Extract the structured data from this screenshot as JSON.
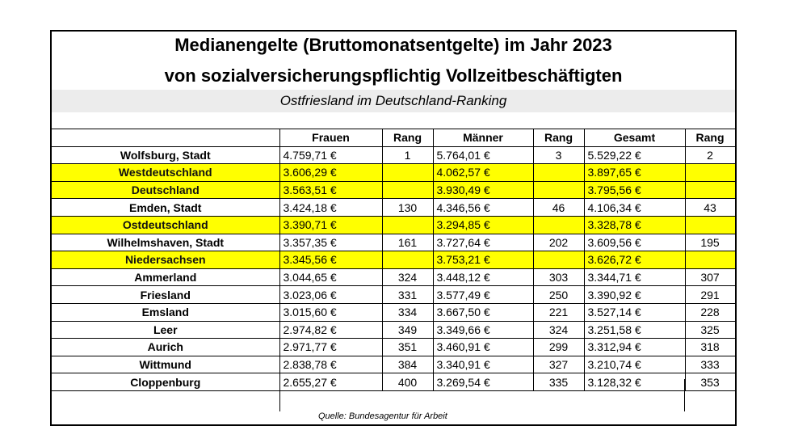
{
  "title_line1": "Medianengelte (Bruttomonatsentgelte) im Jahr 2023",
  "title_line2": "von sozialversicherungspflichtig Vollzeitbeschäftigten",
  "subtitle": "Ostfriesland im Deutschland-Ranking",
  "headers": [
    "",
    "Frauen",
    "Rang",
    "Männer",
    "Rang",
    "Gesamt",
    "Rang"
  ],
  "rows": [
    {
      "name": "Wolfsburg, Stadt",
      "frauen": "4.759,71 €",
      "rang_f": "1",
      "maenner": "5.764,01 €",
      "rang_m": "3",
      "gesamt": "5.529,22 €",
      "rang_g": "2",
      "highlight": false
    },
    {
      "name": "Westdeutschland",
      "frauen": "3.606,29 €",
      "rang_f": "",
      "maenner": "4.062,57 €",
      "rang_m": "",
      "gesamt": "3.897,65 €",
      "rang_g": "",
      "highlight": true
    },
    {
      "name": "Deutschland",
      "frauen": "3.563,51 €",
      "rang_f": "",
      "maenner": "3.930,49 €",
      "rang_m": "",
      "gesamt": "3.795,56 €",
      "rang_g": "",
      "highlight": true
    },
    {
      "name": "Emden, Stadt",
      "frauen": "3.424,18 €",
      "rang_f": "130",
      "maenner": "4.346,56 €",
      "rang_m": "46",
      "gesamt": "4.106,34 €",
      "rang_g": "43",
      "highlight": false
    },
    {
      "name": "Ostdeutschland",
      "frauen": "3.390,71 €",
      "rang_f": "",
      "maenner": "3.294,85 €",
      "rang_m": "",
      "gesamt": "3.328,78 €",
      "rang_g": "",
      "highlight": true
    },
    {
      "name": "Wilhelmshaven, Stadt",
      "frauen": "3.357,35 €",
      "rang_f": "161",
      "maenner": "3.727,64 €",
      "rang_m": "202",
      "gesamt": "3.609,56 €",
      "rang_g": "195",
      "highlight": false
    },
    {
      "name": "Niedersachsen",
      "frauen": "3.345,56 €",
      "rang_f": "",
      "maenner": "3.753,21 €",
      "rang_m": "",
      "gesamt": "3.626,72 €",
      "rang_g": "",
      "highlight": true
    },
    {
      "name": "Ammerland",
      "frauen": "3.044,65 €",
      "rang_f": "324",
      "maenner": "3.448,12 €",
      "rang_m": "303",
      "gesamt": "3.344,71 €",
      "rang_g": "307",
      "highlight": false
    },
    {
      "name": "Friesland",
      "frauen": "3.023,06 €",
      "rang_f": "331",
      "maenner": "3.577,49 €",
      "rang_m": "250",
      "gesamt": "3.390,92 €",
      "rang_g": "291",
      "highlight": false
    },
    {
      "name": "Emsland",
      "frauen": "3.015,60 €",
      "rang_f": "334",
      "maenner": "3.667,50 €",
      "rang_m": "221",
      "gesamt": "3.527,14 €",
      "rang_g": "228",
      "highlight": false
    },
    {
      "name": "Leer",
      "frauen": "2.974,82 €",
      "rang_f": "349",
      "maenner": "3.349,66 €",
      "rang_m": "324",
      "gesamt": "3.251,58 €",
      "rang_g": "325",
      "highlight": false
    },
    {
      "name": "Aurich",
      "frauen": "2.971,77 €",
      "rang_f": "351",
      "maenner": "3.460,91 €",
      "rang_m": "299",
      "gesamt": "3.312,94 €",
      "rang_g": "318",
      "highlight": false
    },
    {
      "name": "Wittmund",
      "frauen": "2.838,78 €",
      "rang_f": "384",
      "maenner": "3.340,91 €",
      "rang_m": "327",
      "gesamt": "3.210,74 €",
      "rang_g": "333",
      "highlight": false
    },
    {
      "name": "Cloppenburg",
      "frauen": "2.655,27 €",
      "rang_f": "400",
      "maenner": "3.269,54 €",
      "rang_m": "335",
      "gesamt": "3.128,32 €",
      "rang_g": "353",
      "highlight": false
    }
  ],
  "source": "Quelle: Bundesagentur für Arbeit"
}
